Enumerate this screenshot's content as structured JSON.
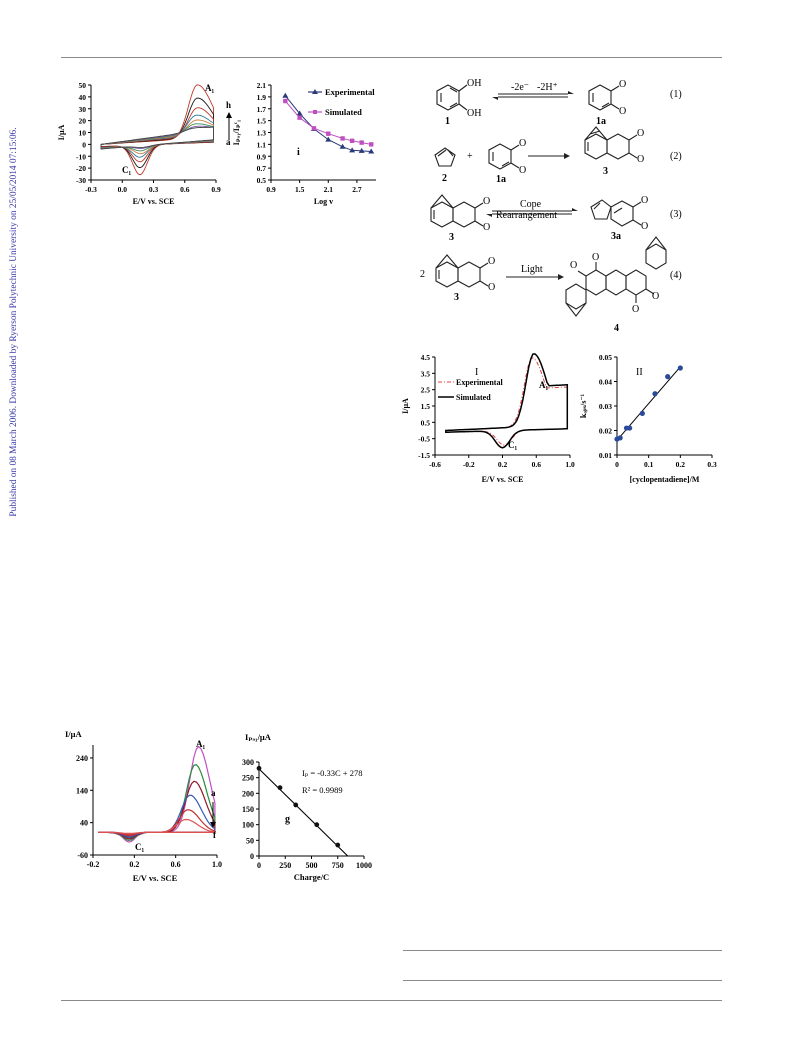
{
  "sidebar": {
    "text": "Published on 08 March 2006. Downloaded by Ryerson Polytechnic University on 25/05/2014 07:15:06."
  },
  "colors": {
    "sidebar_link": "#3a3aa8",
    "experimental": "#2a3a7a",
    "simulated": "#c050c0",
    "cv_dashed_red": "#e04040",
    "regression_point": "#2a4a9a"
  },
  "scheme": {
    "rows": [
      {
        "label": "(1)",
        "arrow_text": [
          "-2e⁻",
          "-2H⁺"
        ],
        "reactants": [
          "1"
        ],
        "products": [
          "1a"
        ]
      },
      {
        "label": "(2)",
        "arrow_text": [],
        "reactants": [
          "2",
          "1a"
        ],
        "products": [
          "3"
        ],
        "operator": "+"
      },
      {
        "label": "(3)",
        "arrow_text": [
          "Cope",
          "Rearrangement"
        ],
        "reactants": [
          "3"
        ],
        "products": [
          "3a"
        ]
      },
      {
        "label": "(4)",
        "arrow_text": [
          "Light"
        ],
        "reactants": [
          "3"
        ],
        "products": [
          "4"
        ],
        "coefficient": "2"
      }
    ],
    "atom_labels": {
      "hydroxyl": "OH",
      "oxo": "O"
    }
  },
  "chart_data": [
    {
      "type": "line",
      "id": "fig1-cv",
      "xlabel": "E/V vs. SCE",
      "ylabel": "I/μA",
      "xlim": [
        -0.3,
        0.9
      ],
      "ylim": [
        -30,
        50
      ],
      "xticks": [
        "-0.3",
        "0.0",
        "0.3",
        "0.6",
        "0.9"
      ],
      "yticks": [
        "50",
        "40",
        "30",
        "20",
        "10",
        "0",
        "-10",
        "-20",
        "-30"
      ],
      "annotations": [
        "A₁",
        "C₁",
        "h",
        "a"
      ],
      "series": [
        {
          "peak_anodic": [
            0.72,
            45
          ],
          "peak_cathodic": [
            0.17,
            -25
          ]
        },
        {
          "peak_anodic": [
            0.72,
            33
          ],
          "peak_cathodic": [
            0.17,
            -19
          ]
        },
        {
          "peak_anodic": [
            0.72,
            24
          ],
          "peak_cathodic": [
            0.17,
            -14
          ]
        },
        {
          "peak_anodic": [
            0.71,
            17
          ],
          "peak_cathodic": [
            0.17,
            -10
          ]
        },
        {
          "peak_anodic": [
            0.71,
            12
          ],
          "peak_cathodic": [
            0.18,
            -7
          ]
        },
        {
          "peak_anodic": [
            0.7,
            8
          ],
          "peak_cathodic": [
            0.18,
            -4.5
          ]
        },
        {
          "peak_anodic": [
            0.7,
            5
          ],
          "peak_cathodic": [
            0.19,
            -2.5
          ]
        },
        {
          "peak_anodic": [
            0.69,
            3
          ],
          "peak_cathodic": [
            0.2,
            -1.5
          ]
        }
      ]
    },
    {
      "type": "line",
      "id": "fig1-ratio",
      "xlabel": "Log v",
      "ylabel": "Iₚₐ₁/Iₚᶜ₁",
      "xlim": [
        0.9,
        3.1
      ],
      "ylim": [
        0.5,
        2.1
      ],
      "xticks": [
        "0.9",
        "1.5",
        "2.1",
        "2.7"
      ],
      "yticks": [
        "2.1",
        "1.9",
        "1.7",
        "1.5",
        "1.3",
        "1.1",
        "0.9",
        "0.7",
        "0.5"
      ],
      "panel_label": "i",
      "legend": "top-right",
      "series": [
        {
          "name": "Experimental",
          "marker": "triangle",
          "x": [
            1.2,
            1.5,
            1.8,
            2.1,
            2.4,
            2.6,
            2.8,
            3.0
          ],
          "y": [
            1.92,
            1.62,
            1.36,
            1.18,
            1.06,
            1.0,
            0.99,
            0.98
          ]
        },
        {
          "name": "Simulated",
          "marker": "square",
          "x": [
            1.2,
            1.5,
            1.8,
            2.1,
            2.4,
            2.6,
            2.8,
            3.0
          ],
          "y": [
            1.83,
            1.55,
            1.37,
            1.28,
            1.2,
            1.16,
            1.13,
            1.1
          ]
        }
      ]
    },
    {
      "type": "line",
      "id": "fig2-cv",
      "xlabel": "E/V vs. SCE",
      "ylabel": "I/μA",
      "xlim": [
        -0.6,
        1.0
      ],
      "ylim": [
        -1.5,
        4.5
      ],
      "xticks": [
        "-0.6",
        "-0.2",
        "0.2",
        "0.6",
        "1.0"
      ],
      "yticks": [
        "4.5",
        "3.5",
        "2.5",
        "1.5",
        "0.5",
        "-0.5",
        "-1.5"
      ],
      "panel_label": "I",
      "legend": "left",
      "annotations": [
        "A₁",
        "C₁"
      ],
      "series": [
        {
          "name": "Experimental",
          "style": "dash-dot",
          "peak_anodic": [
            0.55,
            4.2
          ],
          "peak_cathodic": [
            0.22,
            -0.9
          ]
        },
        {
          "name": "Simulated",
          "style": "solid",
          "peak_anodic": [
            0.57,
            4.45
          ],
          "peak_cathodic": [
            0.2,
            -1.05
          ]
        }
      ]
    },
    {
      "type": "scatter",
      "id": "fig2-kobs",
      "xlabel": "[cyclopentadiene]/M",
      "ylabel": "kₒᵦₛ/s⁻¹",
      "xlim": [
        0,
        0.3
      ],
      "ylim": [
        0.01,
        0.05
      ],
      "xticks": [
        "0",
        "0.1",
        "0.2",
        "0.3"
      ],
      "yticks": [
        "0.05",
        "0.04",
        "0.03",
        "0.02",
        "0.01"
      ],
      "panel_label": "II",
      "x": [
        0.0,
        0.01,
        0.03,
        0.04,
        0.08,
        0.12,
        0.16,
        0.2
      ],
      "y": [
        0.0165,
        0.017,
        0.021,
        0.021,
        0.027,
        0.035,
        0.042,
        0.0455
      ],
      "fit": {
        "x": [
          0.0,
          0.2
        ],
        "y": [
          0.016,
          0.046
        ]
      }
    },
    {
      "type": "line",
      "id": "fig3-cv",
      "xlabel": "E/V vs. SCE",
      "ylabel": "I/μA",
      "xlim": [
        -0.2,
        1.0
      ],
      "ylim": [
        -60,
        280
      ],
      "xticks": [
        "-0.2",
        "0.2",
        "0.6",
        "1.0"
      ],
      "yticks": [
        "240",
        "140",
        "40",
        "-60"
      ],
      "annotations": [
        "A₁",
        "C₁",
        "a",
        "f"
      ],
      "series": [
        {
          "peak_anodic": [
            0.82,
            265
          ]
        },
        {
          "peak_anodic": [
            0.79,
            210
          ]
        },
        {
          "peak_anodic": [
            0.78,
            158
          ]
        },
        {
          "peak_anodic": [
            0.74,
            115
          ]
        },
        {
          "peak_anodic": [
            0.72,
            70
          ]
        },
        {
          "peak_anodic": [
            0.7,
            40
          ]
        }
      ]
    },
    {
      "type": "scatter",
      "id": "fig3-charge",
      "xlabel": "Charge/C",
      "ylabel": "Iₚₐ₁/μA",
      "xlim": [
        0,
        1000
      ],
      "ylim": [
        0,
        300
      ],
      "xticks": [
        "0",
        "250",
        "500",
        "750",
        "1000"
      ],
      "yticks": [
        "300",
        "250",
        "200",
        "150",
        "100",
        "50",
        "0"
      ],
      "panel_label": "g",
      "equation": "Iₚ = -0.33C + 278",
      "r_squared": "R² = 0.9989",
      "x": [
        0,
        200,
        350,
        550,
        750
      ],
      "y": [
        280,
        218,
        163,
        100,
        35
      ],
      "fit": {
        "x": [
          0,
          845
        ],
        "y": [
          278,
          0
        ]
      }
    }
  ]
}
